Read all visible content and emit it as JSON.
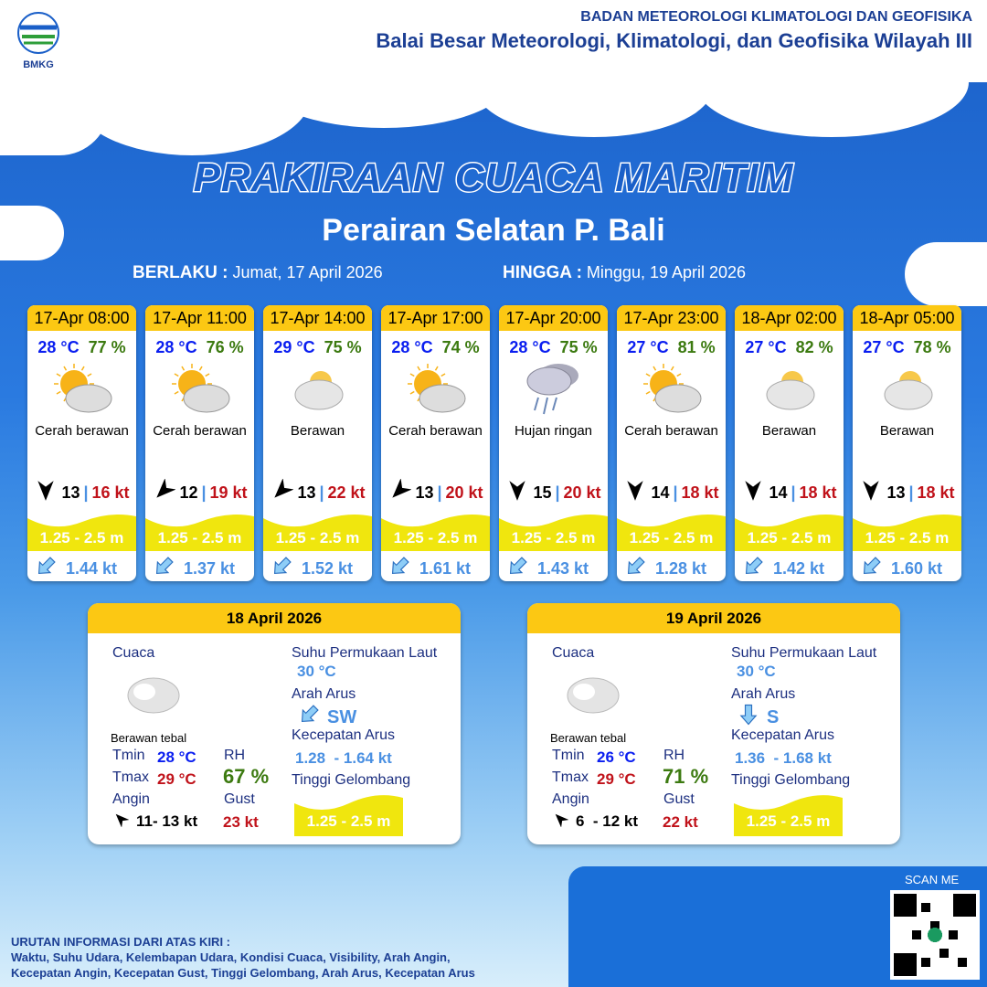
{
  "header": {
    "org": "BADAN METEOROLOGI KLIMATOLOGI DAN GEOFISIKA",
    "office": "Balai Besar Meteorologi, Klimatologi, dan Geofisika Wilayah III",
    "logo_text": "BMKG"
  },
  "title": "PRAKIRAAN CUACA MARITIM",
  "subtitle": "Perairan Selatan P. Bali",
  "validity": {
    "from_label": "BERLAKU :",
    "from": "Jumat, 17 April 2026",
    "to_label": "HINGGA :",
    "to": "Minggu, 19 April 2026"
  },
  "colors": {
    "header_yellow": "#fcc813",
    "wave_yellow": "#f0e60e",
    "temp_blue": "#0a1ef0",
    "rh_green": "#3c7a10",
    "gust_red": "#c0121a",
    "current_blue": "#4a90e2"
  },
  "forecasts": [
    {
      "time": "17-Apr 08:00",
      "temp": "28 °C",
      "rh": "77 %",
      "icon": "sun-cloud-icon",
      "cond": "Cerah berawan",
      "wind_dir_deg": 270,
      "wind": "13",
      "gust": "16 kt",
      "wave": "1.25 - 2.5 m",
      "current": "1.44 kt"
    },
    {
      "time": "17-Apr 11:00",
      "temp": "28 °C",
      "rh": "76 %",
      "icon": "sun-cloud-icon",
      "cond": "Cerah berawan",
      "wind_dir_deg": 315,
      "wind": "12",
      "gust": "19 kt",
      "wave": "1.25 - 2.5 m",
      "current": "1.37 kt"
    },
    {
      "time": "17-Apr 14:00",
      "temp": "29 °C",
      "rh": "75 %",
      "icon": "cloud-icon",
      "cond": "Berawan",
      "wind_dir_deg": 315,
      "wind": "13",
      "gust": "22 kt",
      "wave": "1.25 - 2.5 m",
      "current": "1.52 kt"
    },
    {
      "time": "17-Apr 17:00",
      "temp": "28 °C",
      "rh": "74 %",
      "icon": "sun-cloud-icon",
      "cond": "Cerah berawan",
      "wind_dir_deg": 315,
      "wind": "13",
      "gust": "20 kt",
      "wave": "1.25 - 2.5 m",
      "current": "1.61 kt"
    },
    {
      "time": "17-Apr 20:00",
      "temp": "28 °C",
      "rh": "75 %",
      "icon": "rain-cloud-icon",
      "cond": "Hujan ringan",
      "wind_dir_deg": 270,
      "wind": "15",
      "gust": "20 kt",
      "wave": "1.25 - 2.5 m",
      "current": "1.43 kt"
    },
    {
      "time": "17-Apr 23:00",
      "temp": "27 °C",
      "rh": "81 %",
      "icon": "sun-cloud-icon",
      "cond": "Cerah berawan",
      "wind_dir_deg": 270,
      "wind": "14",
      "gust": "18 kt",
      "wave": "1.25 - 2.5 m",
      "current": "1.28 kt"
    },
    {
      "time": "18-Apr 02:00",
      "temp": "27 °C",
      "rh": "82 %",
      "icon": "cloud-icon",
      "cond": "Berawan",
      "wind_dir_deg": 270,
      "wind": "14",
      "gust": "18 kt",
      "wave": "1.25 - 2.5 m",
      "current": "1.42 kt"
    },
    {
      "time": "18-Apr 05:00",
      "temp": "27 °C",
      "rh": "78 %",
      "icon": "cloud-icon",
      "cond": "Berawan",
      "wind_dir_deg": 270,
      "wind": "13",
      "gust": "18 kt",
      "wave": "1.25 - 2.5 m",
      "current": "1.60 kt"
    }
  ],
  "days": [
    {
      "date": "18 April 2026",
      "cuaca_label": "Cuaca",
      "cond": "Berawan tebal",
      "tmin_label": "Tmin",
      "tmin": "28 °C",
      "tmax_label": "Tmax",
      "tmax": "29 °C",
      "rh_label": "RH",
      "rh": "67 %",
      "angin_label": "Angin",
      "angin": "11- 13 kt",
      "gust_label": "Gust",
      "gust": "23 kt",
      "sst_label": "Suhu Permukaan Laut",
      "sst": "30 °C",
      "arah_label": "Arah Arus",
      "arah": "SW",
      "kec_label": "Kecepatan Arus",
      "kec": "1.28  - 1.64 kt",
      "tg_label": "Tinggi Gelombang",
      "tg": "1.25 - 2.5 m"
    },
    {
      "date": "19 April 2026",
      "cuaca_label": "Cuaca",
      "cond": "Berawan tebal",
      "tmin_label": "Tmin",
      "tmin": "26 °C",
      "tmax_label": "Tmax",
      "tmax": "29 °C",
      "rh_label": "RH",
      "rh": "71 %",
      "angin_label": "Angin",
      "angin": "6  - 12 kt",
      "gust_label": "Gust",
      "gust": "22 kt",
      "sst_label": "Suhu Permukaan Laut",
      "sst": "30 °C",
      "arah_label": "Arah Arus",
      "arah": "S",
      "kec_label": "Kecepatan Arus",
      "kec": "1.36  - 1.68 kt",
      "tg_label": "Tinggi Gelombang",
      "tg": "1.25 - 2.5 m"
    }
  ],
  "footer": {
    "scan": "SCAN ME",
    "legend_title": "URUTAN INFORMASI DARI ATAS KIRI :",
    "legend_line1": "Waktu, Suhu Udara, Kelembapan Udara, Kondisi Cuaca, Visibility, Arah Angin,",
    "legend_line2": "Kecepatan Angin, Kecepatan Gust, Tinggi Gelombang, Arah Arus, Kecepatan Arus"
  }
}
